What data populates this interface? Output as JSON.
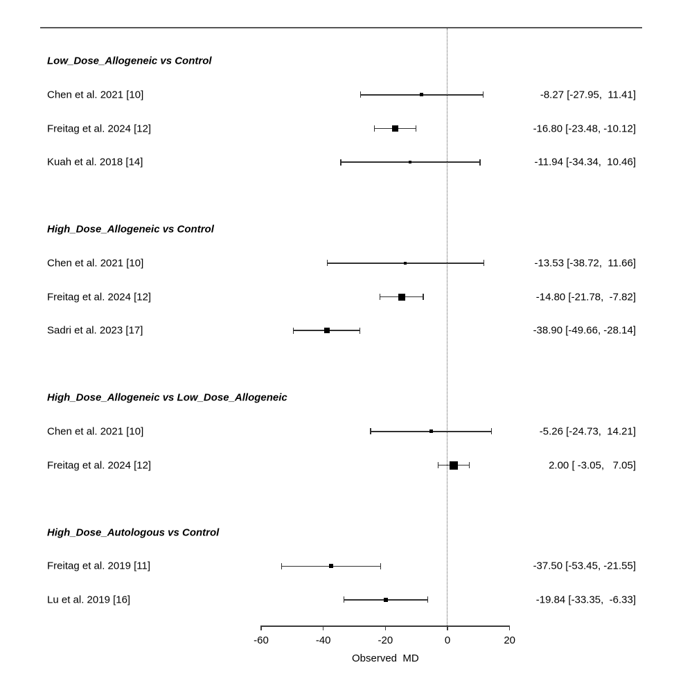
{
  "chart_data": {
    "type": "forest",
    "title": "",
    "xlabel": "Observed  MD",
    "x_axis_range": [
      -60,
      20
    ],
    "x_tick_values": [
      -60,
      -40,
      -20,
      0,
      20
    ],
    "x_tick_labels": [
      "-60",
      "-40",
      "-20",
      "0",
      "20"
    ],
    "zero_line": 0,
    "grid": false,
    "legend": "none",
    "groups": [
      {
        "label": "Low_Dose_Allogeneic vs Control",
        "studies": [
          {
            "label": "Chen et al. 2021 [10]",
            "estimate": -8.27,
            "ci_lower": -27.95,
            "ci_upper": 11.41,
            "ci_text": "-8.27 [-27.95,  11.41]",
            "square_size": 5
          },
          {
            "label": "Freitag et al. 2024 [12]",
            "estimate": -16.8,
            "ci_lower": -23.48,
            "ci_upper": -10.12,
            "ci_text": "-16.80 [-23.48, -10.12]",
            "square_size": 9
          },
          {
            "label": "Kuah et al. 2018 [14]",
            "estimate": -11.94,
            "ci_lower": -34.34,
            "ci_upper": 10.46,
            "ci_text": "-11.94 [-34.34,  10.46]",
            "square_size": 4
          }
        ]
      },
      {
        "label": "High_Dose_Allogeneic vs Control",
        "studies": [
          {
            "label": "Chen et al. 2021 [10]",
            "estimate": -13.53,
            "ci_lower": -38.72,
            "ci_upper": 11.66,
            "ci_text": "-13.53 [-38.72,  11.66]",
            "square_size": 4
          },
          {
            "label": "Freitag et al. 2024 [12]",
            "estimate": -14.8,
            "ci_lower": -21.78,
            "ci_upper": -7.82,
            "ci_text": "-14.80 [-21.78,  -7.82]",
            "square_size": 10
          },
          {
            "label": "Sadri et al. 2023 [17]",
            "estimate": -38.9,
            "ci_lower": -49.66,
            "ci_upper": -28.14,
            "ci_text": "-38.90 [-49.66, -28.14]",
            "square_size": 8
          }
        ]
      },
      {
        "label": "High_Dose_Allogeneic vs Low_Dose_Allogeneic",
        "studies": [
          {
            "label": "Chen et al. 2021 [10]",
            "estimate": -5.26,
            "ci_lower": -24.73,
            "ci_upper": 14.21,
            "ci_text": "-5.26 [-24.73,  14.21]",
            "square_size": 5
          },
          {
            "label": "Freitag et al. 2024 [12]",
            "estimate": 2.0,
            "ci_lower": -3.05,
            "ci_upper": 7.05,
            "ci_text": "2.00 [ -3.05,   7.05]",
            "square_size": 12
          }
        ]
      },
      {
        "label": "High_Dose_Autologous vs Control",
        "studies": [
          {
            "label": "Freitag et al. 2019 [11]",
            "estimate": -37.5,
            "ci_lower": -53.45,
            "ci_upper": -21.55,
            "ci_text": "-37.50 [-53.45, -21.55]",
            "square_size": 6
          },
          {
            "label": "Lu et al. 2019 [16]",
            "estimate": -19.84,
            "ci_lower": -33.35,
            "ci_upper": -6.33,
            "ci_text": "-19.84 [-33.35,  -6.33]",
            "square_size": 6
          }
        ]
      }
    ]
  }
}
